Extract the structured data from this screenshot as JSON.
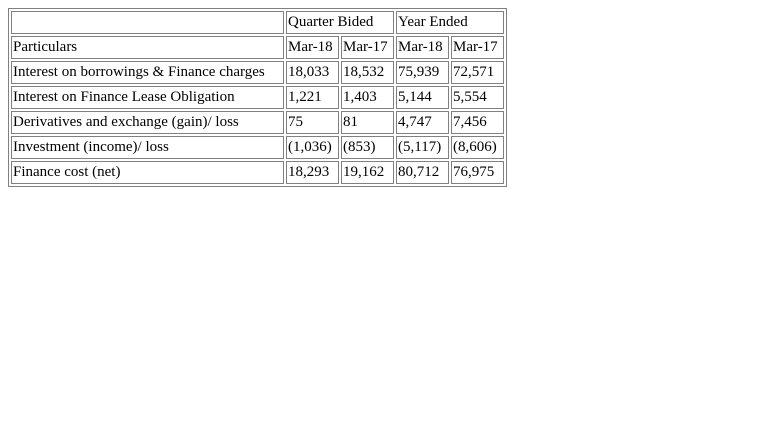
{
  "table": {
    "group_headers": {
      "blank": "",
      "quarter": "Quarter Bided",
      "year": "Year Ended"
    },
    "columns": [
      "Particulars",
      "Mar-18",
      "Mar-17",
      "Mar-18",
      "Mar-17"
    ],
    "rows": [
      {
        "label": "Interest on borrowings & Finance charges",
        "values": [
          "18,033",
          "18,532",
          "75,939",
          "72,571"
        ]
      },
      {
        "label": "Interest on Finance Lease Obligation",
        "values": [
          "1,221",
          "1,403",
          "5,144",
          "5,554"
        ]
      },
      {
        "label": "Derivatives and exchange (gain)/ loss",
        "values": [
          "75",
          "81",
          "4,747",
          "7,456"
        ]
      },
      {
        "label": "Investment (income)/ loss",
        "values": [
          "(1,036)",
          "(853)",
          "(5,117)",
          "(8,606)"
        ]
      },
      {
        "label": "Finance cost (net)",
        "values": [
          "18,293",
          "19,162",
          "80,712",
          "76,975"
        ]
      }
    ]
  }
}
